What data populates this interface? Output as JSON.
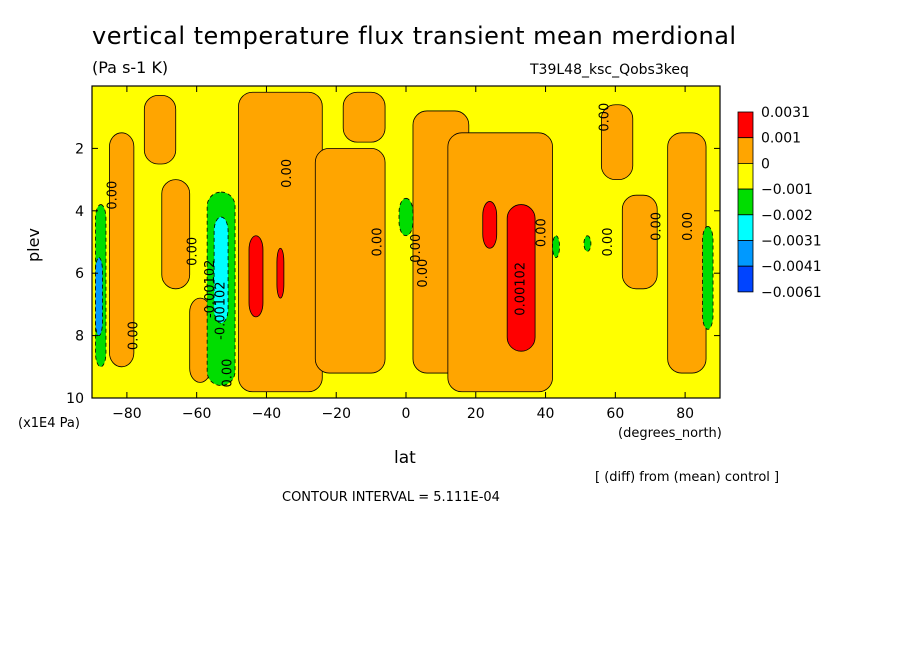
{
  "title": "vertical temperature flux transient mean merdional",
  "units": "(Pa s-1 K)",
  "run_label": "T39L48_ksc_Qobs3keq",
  "x_axis": {
    "label": "lat",
    "units": "(degrees_north)"
  },
  "y_axis": {
    "label": "plev",
    "units": "(x1E4 Pa)"
  },
  "diff_note": "[ (diff) from (mean) control ]",
  "contour_interval": "CONTOUR INTERVAL = 5.111E-04",
  "chart_data": {
    "type": "heatmap",
    "title": "vertical temperature flux transient mean merdional",
    "xlabel": "lat",
    "ylabel": "plev",
    "xlim": [
      -90,
      90
    ],
    "ylim": [
      0,
      10
    ],
    "y_reversed": true,
    "xticks": [
      -80,
      -60,
      -40,
      -20,
      0,
      20,
      40,
      60,
      80
    ],
    "yticks": [
      2,
      4,
      6,
      8,
      10
    ],
    "colorbar": {
      "labels": [
        "0.0031",
        "0.001",
        "0",
        "−0.001",
        "−0.002",
        "−0.0031",
        "−0.0041",
        "−0.0061"
      ],
      "colors": [
        "#ff0000",
        "#ffa500",
        "#ffff00",
        "#00dd00",
        "#00ffff",
        "#0099ff",
        "#0044ff"
      ]
    },
    "background_level": "0",
    "regions": [
      {
        "level": "0.001",
        "lat": [
          -85,
          -78
        ],
        "p": [
          1.5,
          9.0
        ]
      },
      {
        "level": "0.001",
        "lat": [
          -75,
          -66
        ],
        "p": [
          0.3,
          2.5
        ]
      },
      {
        "level": "0.001",
        "lat": [
          -70,
          -62
        ],
        "p": [
          3.0,
          6.5
        ]
      },
      {
        "level": "0.001",
        "lat": [
          -62,
          -56
        ],
        "p": [
          6.8,
          9.5
        ]
      },
      {
        "level": "0.001",
        "lat": [
          -48,
          -24
        ],
        "p": [
          0.2,
          9.8
        ]
      },
      {
        "level": "0.001",
        "lat": [
          -26,
          -6
        ],
        "p": [
          2.0,
          9.2
        ]
      },
      {
        "level": "0.001",
        "lat": [
          -18,
          -6
        ],
        "p": [
          0.2,
          1.8
        ]
      },
      {
        "level": "0.001",
        "lat": [
          2,
          18
        ],
        "p": [
          0.8,
          9.2
        ]
      },
      {
        "level": "0.001",
        "lat": [
          12,
          42
        ],
        "p": [
          1.5,
          9.8
        ]
      },
      {
        "level": "0.001",
        "lat": [
          56,
          65
        ],
        "p": [
          0.6,
          3.0
        ]
      },
      {
        "level": "0.001",
        "lat": [
          62,
          72
        ],
        "p": [
          3.5,
          6.5
        ]
      },
      {
        "level": "0.001",
        "lat": [
          75,
          86
        ],
        "p": [
          1.5,
          9.2
        ]
      },
      {
        "level": "0.0031",
        "lat": [
          -45,
          -41
        ],
        "p": [
          4.8,
          7.4
        ]
      },
      {
        "level": "0.0031",
        "lat": [
          -37,
          -35
        ],
        "p": [
          5.2,
          6.8
        ]
      },
      {
        "level": "0.0031",
        "lat": [
          22,
          26
        ],
        "p": [
          3.7,
          5.2
        ]
      },
      {
        "level": "0.0031",
        "lat": [
          29,
          37
        ],
        "p": [
          3.8,
          8.5
        ]
      },
      {
        "level": "−0.001",
        "lat": [
          -57,
          -49
        ],
        "p": [
          3.4,
          9.6
        ]
      },
      {
        "level": "−0.001",
        "lat": [
          -2,
          2
        ],
        "p": [
          3.6,
          4.8
        ]
      },
      {
        "level": "−0.001",
        "lat": [
          42,
          44
        ],
        "p": [
          4.8,
          5.5
        ]
      },
      {
        "level": "−0.001",
        "lat": [
          51,
          53
        ],
        "p": [
          4.8,
          5.3
        ]
      },
      {
        "level": "−0.001",
        "lat": [
          85,
          88
        ],
        "p": [
          4.5,
          7.8
        ]
      },
      {
        "level": "−0.001",
        "lat": [
          -89,
          -86
        ],
        "p": [
          3.8,
          9.0
        ]
      },
      {
        "level": "−0.002",
        "lat": [
          -55,
          -51
        ],
        "p": [
          4.2,
          7.6
        ]
      },
      {
        "level": "−0.0031",
        "lat": [
          -89,
          -87
        ],
        "p": [
          5.5,
          8.0
        ]
      }
    ],
    "contour_labels": [
      {
        "text": "0.00",
        "lat": -83,
        "p": 3.5
      },
      {
        "text": "0.00",
        "lat": -77,
        "p": 8.0
      },
      {
        "text": "0.00",
        "lat": -60,
        "p": 5.3
      },
      {
        "text": "-0.00102",
        "lat": -55,
        "p": 6.5
      },
      {
        "text": "-0.00102",
        "lat": -52,
        "p": 7.2
      },
      {
        "text": "0.00",
        "lat": -50,
        "p": 9.2
      },
      {
        "text": "0.00",
        "lat": -33,
        "p": 2.8
      },
      {
        "text": "0.00",
        "lat": -7,
        "p": 5.0
      },
      {
        "text": "0.00",
        "lat": 4,
        "p": 5.2
      },
      {
        "text": "0.00",
        "lat": 6,
        "p": 6.0
      },
      {
        "text": "0.00102",
        "lat": 34,
        "p": 6.5
      },
      {
        "text": "0.00",
        "lat": 40,
        "p": 4.7
      },
      {
        "text": "0.00",
        "lat": 58,
        "p": 1.0
      },
      {
        "text": "0.00",
        "lat": 59,
        "p": 5.0
      },
      {
        "text": "0.00",
        "lat": 73,
        "p": 4.5
      },
      {
        "text": "0.00",
        "lat": 82,
        "p": 4.5
      }
    ]
  }
}
